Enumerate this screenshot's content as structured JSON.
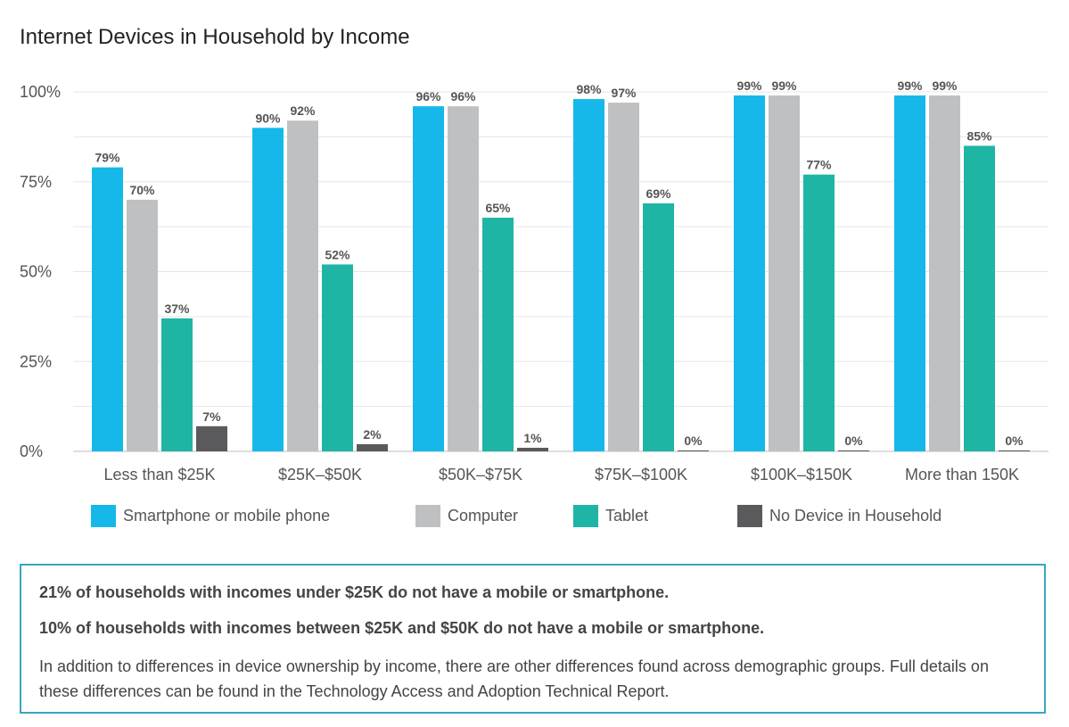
{
  "title": "Internet Devices in Household by Income",
  "chart_data": {
    "type": "bar",
    "title": "Internet Devices in Household by Income",
    "categories": [
      "Less than $25K",
      "$25K–$50K",
      "$50K–$75K",
      "$75K–$100K",
      "$100K–$150K",
      "More than 150K"
    ],
    "series": [
      {
        "name": "Smartphone or mobile phone",
        "values": [
          79,
          90,
          96,
          98,
          99,
          99
        ],
        "labels": [
          "79%",
          "90%",
          "96%",
          "98%",
          "99%",
          "99%"
        ],
        "color": "#16b8ea"
      },
      {
        "name": "Computer",
        "values": [
          70,
          92,
          96,
          97,
          99,
          99
        ],
        "labels": [
          "70%",
          "92%",
          "96%",
          "97%",
          "99%",
          "99%"
        ],
        "color": "#bfc0c2"
      },
      {
        "name": "Tablet",
        "values": [
          37,
          52,
          65,
          69,
          77,
          85
        ],
        "labels": [
          "37%",
          "52%",
          "65%",
          "69%",
          "77%",
          "85%"
        ],
        "color": "#1fb5a5"
      },
      {
        "name": "No Device in Household",
        "values": [
          7,
          2,
          1,
          0,
          0,
          0
        ],
        "labels": [
          "7%",
          "2%",
          "1%",
          "0%",
          "0%",
          "0%"
        ],
        "color": "#5a5a5c"
      }
    ],
    "y_ticks": [
      "0%",
      "25%",
      "50%",
      "75%",
      "100%"
    ],
    "ylim": [
      0,
      100
    ],
    "grid": true,
    "legend_position": "bottom"
  },
  "callout": {
    "line1": "21% of households with incomes under $25K do not have a mobile or smartphone.",
    "line2": "10% of households with incomes between $25K and $50K do not have a mobile or smartphone.",
    "line3": "In addition to differences in device ownership by income, there are other differences found across demographic groups. Full details on these differences can be found in the Technology Access and Adoption Technical Report.",
    "border_color": "#3aa6c0"
  }
}
